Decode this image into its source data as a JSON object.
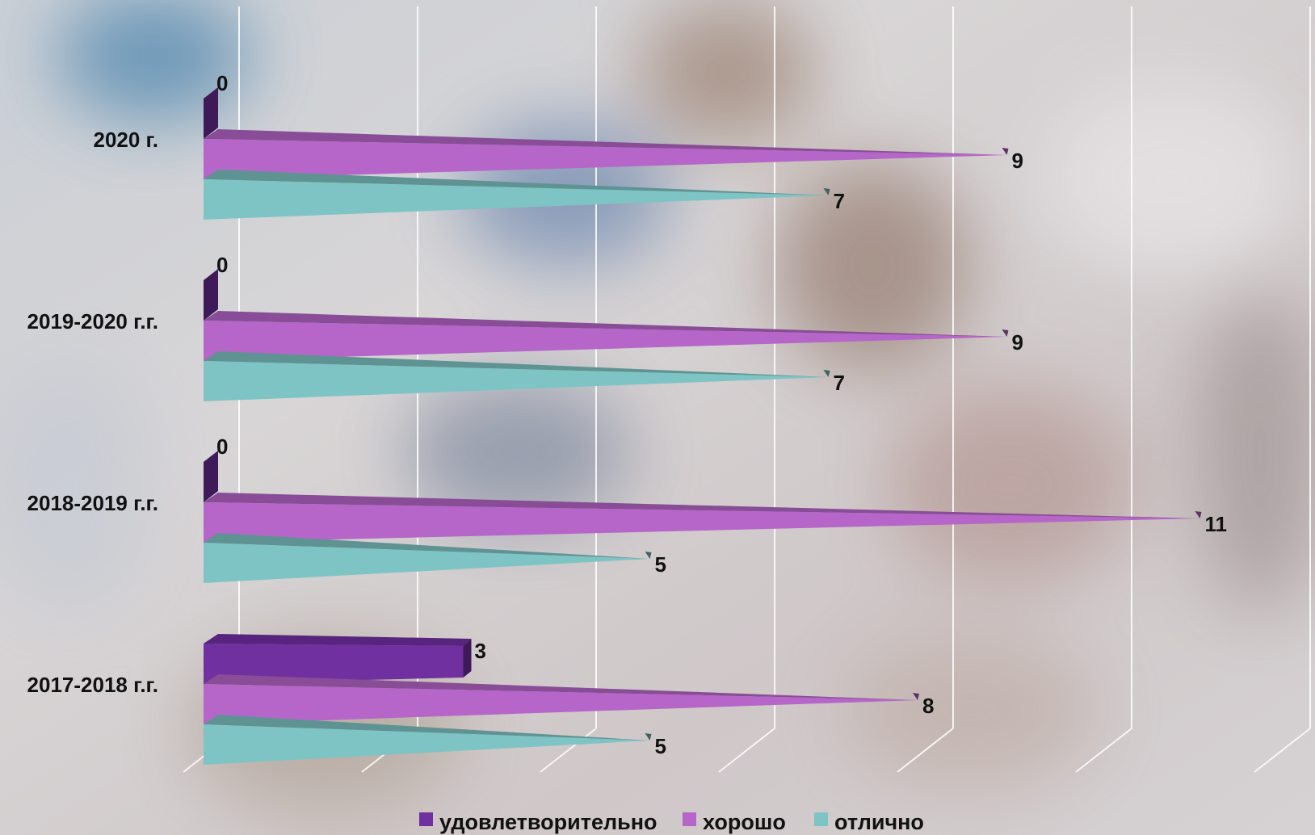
{
  "chart_data": {
    "type": "bar",
    "orientation": "horizontal",
    "style": "3d-pyramid",
    "categories": [
      "2020 г.",
      "2019-2020 г.г.",
      "2018-2019 г.г.",
      "2017-2018 г.г."
    ],
    "series": [
      {
        "name": "удовлетворительно",
        "values": [
          0,
          0,
          0,
          3
        ],
        "color": "#7030a0"
      },
      {
        "name": "хорошо",
        "values": [
          9,
          9,
          11,
          8
        ],
        "color": "#b566c8"
      },
      {
        "name": "отлично",
        "values": [
          7,
          7,
          5,
          5
        ],
        "color": "#7ec4c4"
      }
    ],
    "xlim": [
      0,
      12
    ],
    "grid": true,
    "legend_position": "bottom",
    "data_labels": true
  }
}
